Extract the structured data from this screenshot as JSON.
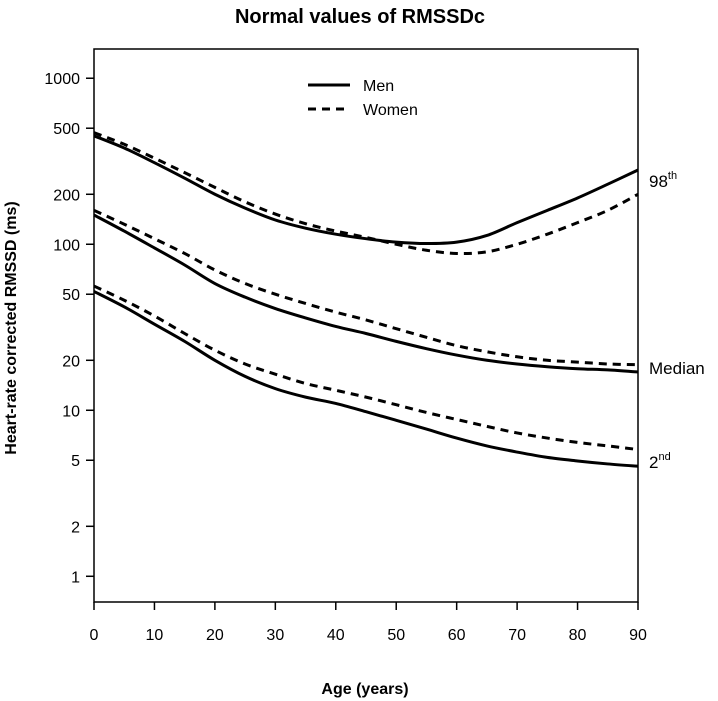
{
  "chart_data": {
    "type": "line",
    "title": "Normal values of RMSSDc",
    "xlabel": "Age (years)",
    "ylabel": "Heart-rate corrected RMSSD (ms)",
    "xlim": [
      0,
      90
    ],
    "ylim": [
      0.7,
      1500
    ],
    "yscale": "log",
    "x_ticks": [
      0,
      10,
      20,
      30,
      40,
      50,
      60,
      70,
      80,
      90
    ],
    "y_ticks": [
      1,
      2,
      5,
      10,
      20,
      50,
      100,
      200,
      500,
      1000
    ],
    "grid": false,
    "legend": {
      "position": "top-center",
      "entries": [
        {
          "label": "Men",
          "style": "solid"
        },
        {
          "label": "Women",
          "style": "dashed"
        }
      ]
    },
    "end_labels": [
      {
        "base": "98",
        "sup": "th",
        "series_at": 280
      },
      {
        "base": "Median",
        "sup": "",
        "series_at": 17.5
      },
      {
        "base": "2",
        "sup": "nd",
        "series_at": 4.8
      }
    ],
    "x": [
      0,
      5,
      10,
      15,
      20,
      25,
      30,
      35,
      40,
      45,
      50,
      55,
      60,
      65,
      70,
      75,
      80,
      85,
      90
    ],
    "series": [
      {
        "name": "Men 98th",
        "group": "Men",
        "percentile": "98th",
        "style": "solid",
        "values": [
          450,
          380,
          310,
          250,
          200,
          165,
          140,
          125,
          115,
          108,
          103,
          101,
          103,
          113,
          135,
          160,
          190,
          230,
          280
        ]
      },
      {
        "name": "Women 98th",
        "group": "Women",
        "percentile": "98th",
        "style": "dashed",
        "values": [
          470,
          400,
          330,
          270,
          220,
          180,
          152,
          133,
          120,
          110,
          100,
          92,
          88,
          90,
          100,
          115,
          135,
          160,
          200
        ]
      },
      {
        "name": "Men Median",
        "group": "Men",
        "percentile": "Median",
        "style": "solid",
        "values": [
          150,
          120,
          95,
          75,
          58,
          48,
          41,
          36,
          32,
          29,
          26,
          23.5,
          21.5,
          20,
          19,
          18.3,
          17.8,
          17.5,
          17
        ]
      },
      {
        "name": "Women Median",
        "group": "Women",
        "percentile": "Median",
        "style": "dashed",
        "values": [
          160,
          132,
          108,
          88,
          70,
          58,
          50,
          44,
          39,
          35,
          31,
          27.5,
          24.5,
          22.5,
          21,
          20,
          19.5,
          19,
          18.8
        ]
      },
      {
        "name": "Men 2nd",
        "group": "Men",
        "percentile": "2nd",
        "style": "solid",
        "values": [
          52,
          42,
          33,
          26,
          20,
          16,
          13.5,
          12,
          11,
          9.8,
          8.7,
          7.7,
          6.8,
          6.1,
          5.6,
          5.2,
          4.95,
          4.75,
          4.6
        ]
      },
      {
        "name": "Women 2nd",
        "group": "Women",
        "percentile": "2nd",
        "style": "dashed",
        "values": [
          56,
          46,
          37,
          29,
          23,
          19,
          16.5,
          14.5,
          13.2,
          12,
          10.8,
          9.7,
          8.8,
          8,
          7.3,
          6.8,
          6.4,
          6.1,
          5.8
        ]
      }
    ]
  }
}
